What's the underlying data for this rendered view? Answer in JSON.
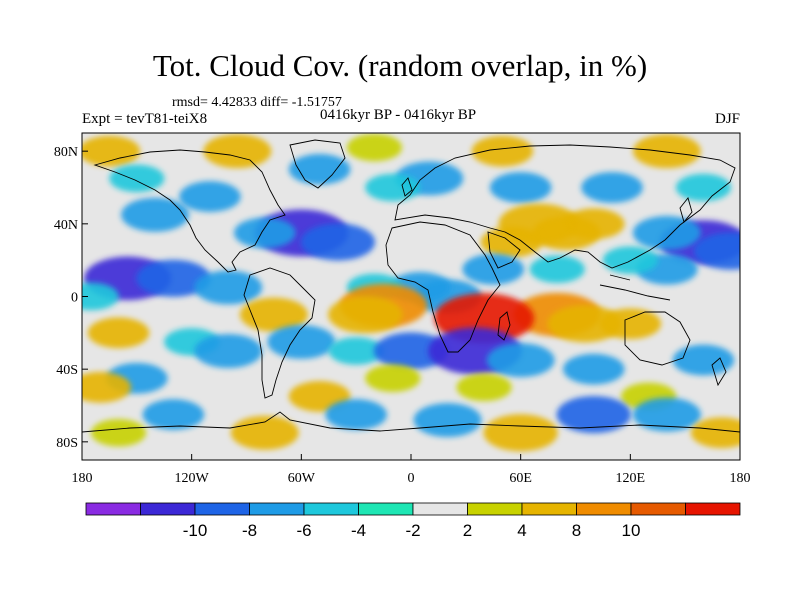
{
  "title": "Tot. Cloud Cov. (random overlap, in %)",
  "stats": "rmsd= 4.42833 diff= -1.51757",
  "experiment": "Expt = tevT81-teiX8",
  "period": "0416kyr BP - 0416kyr BP",
  "season": "DJF",
  "axes": {
    "x_ticks": [
      {
        "value": -180,
        "label": "180"
      },
      {
        "value": -120,
        "label": "120W"
      },
      {
        "value": -60,
        "label": "60W"
      },
      {
        "value": 0,
        "label": "0"
      },
      {
        "value": 60,
        "label": "60E"
      },
      {
        "value": 120,
        "label": "120E"
      },
      {
        "value": 180,
        "label": "180"
      }
    ],
    "y_ticks": [
      {
        "value": 80,
        "label": "80N"
      },
      {
        "value": 40,
        "label": "40N"
      },
      {
        "value": 0,
        "label": "0"
      },
      {
        "value": -40,
        "label": "40S"
      },
      {
        "value": -80,
        "label": "80S"
      }
    ],
    "lon_range": [
      -180,
      180
    ],
    "lat_range": [
      -90,
      90
    ]
  },
  "colorbar": {
    "colors": [
      "#8a2be2",
      "#3c28d6",
      "#1e64e6",
      "#1e9be6",
      "#1ec8dc",
      "#1ee6b4",
      "#e6e6e6",
      "#c8d200",
      "#e6b400",
      "#f08c00",
      "#e65a00",
      "#e61400"
    ],
    "labels": [
      {
        "index": 1,
        "text": "-10"
      },
      {
        "index": 2,
        "text": "-8"
      },
      {
        "index": 3,
        "text": "-6"
      },
      {
        "index": 4,
        "text": "-4"
      },
      {
        "index": 5,
        "text": "-2"
      },
      {
        "index": 6,
        "text": "2"
      },
      {
        "index": 7,
        "text": "4"
      },
      {
        "index": 8,
        "text": "8"
      },
      {
        "index": 9,
        "text": "10"
      }
    ]
  },
  "field_patches": [
    {
      "lon": -165,
      "lat": 80,
      "value": 4
    },
    {
      "lon": -95,
      "lat": 80,
      "value": 5
    },
    {
      "lon": -20,
      "lat": 82,
      "value": 3
    },
    {
      "lon": 50,
      "lat": 80,
      "value": 4
    },
    {
      "lon": 140,
      "lat": 80,
      "value": 5
    },
    {
      "lon": -150,
      "lat": 65,
      "value": -3
    },
    {
      "lon": -140,
      "lat": 45,
      "value": -5
    },
    {
      "lon": -110,
      "lat": 55,
      "value": -4
    },
    {
      "lon": -50,
      "lat": 70,
      "value": -4
    },
    {
      "lon": 10,
      "lat": 65,
      "value": -5
    },
    {
      "lon": -10,
      "lat": 60,
      "value": -3
    },
    {
      "lon": 60,
      "lat": 60,
      "value": -4
    },
    {
      "lon": 110,
      "lat": 60,
      "value": -4
    },
    {
      "lon": 160,
      "lat": 60,
      "value": -3
    },
    {
      "lon": -60,
      "lat": 35,
      "value": -9
    },
    {
      "lon": -40,
      "lat": 30,
      "value": -6
    },
    {
      "lon": -80,
      "lat": 35,
      "value": -4
    },
    {
      "lon": 160,
      "lat": 30,
      "value": -8
    },
    {
      "lon": 140,
      "lat": 35,
      "value": -5
    },
    {
      "lon": 175,
      "lat": 25,
      "value": -6
    },
    {
      "lon": 70,
      "lat": 40,
      "value": 7
    },
    {
      "lon": 85,
      "lat": 35,
      "value": 5
    },
    {
      "lon": 55,
      "lat": 30,
      "value": 4
    },
    {
      "lon": 100,
      "lat": 40,
      "value": 4
    },
    {
      "lon": 45,
      "lat": 15,
      "value": -4
    },
    {
      "lon": 80,
      "lat": 15,
      "value": -3
    },
    {
      "lon": -155,
      "lat": 10,
      "value": -8
    },
    {
      "lon": -130,
      "lat": 10,
      "value": -6
    },
    {
      "lon": -100,
      "lat": 5,
      "value": -5
    },
    {
      "lon": -175,
      "lat": 0,
      "value": -3
    },
    {
      "lon": 20,
      "lat": 0,
      "value": -5
    },
    {
      "lon": 5,
      "lat": 5,
      "value": -4
    },
    {
      "lon": -20,
      "lat": 5,
      "value": -3
    },
    {
      "lon": 140,
      "lat": 15,
      "value": -4
    },
    {
      "lon": 120,
      "lat": 20,
      "value": -3
    },
    {
      "lon": -15,
      "lat": -5,
      "value": 8
    },
    {
      "lon": -25,
      "lat": -10,
      "value": 6
    },
    {
      "lon": 80,
      "lat": -10,
      "value": 8
    },
    {
      "lon": 95,
      "lat": -15,
      "value": 6
    },
    {
      "lon": 120,
      "lat": -15,
      "value": 4
    },
    {
      "lon": -75,
      "lat": -10,
      "value": 5
    },
    {
      "lon": 40,
      "lat": -12,
      "value": 10
    },
    {
      "lon": -160,
      "lat": -20,
      "value": 4
    },
    {
      "lon": -120,
      "lat": -25,
      "value": -3
    },
    {
      "lon": -100,
      "lat": -30,
      "value": -5
    },
    {
      "lon": -60,
      "lat": -25,
      "value": -5
    },
    {
      "lon": -30,
      "lat": -30,
      "value": -3
    },
    {
      "lon": 0,
      "lat": -30,
      "value": -6
    },
    {
      "lon": 35,
      "lat": -30,
      "value": -9
    },
    {
      "lon": 60,
      "lat": -35,
      "value": -5
    },
    {
      "lon": 100,
      "lat": -40,
      "value": -4
    },
    {
      "lon": 160,
      "lat": -35,
      "value": -4
    },
    {
      "lon": -150,
      "lat": -45,
      "value": -4
    },
    {
      "lon": -170,
      "lat": -50,
      "value": 4
    },
    {
      "lon": -50,
      "lat": -55,
      "value": 4
    },
    {
      "lon": -10,
      "lat": -45,
      "value": 3
    },
    {
      "lon": 40,
      "lat": -50,
      "value": 3
    },
    {
      "lon": 130,
      "lat": -55,
      "value": 3
    },
    {
      "lon": 100,
      "lat": -65,
      "value": -6
    },
    {
      "lon": 140,
      "lat": -65,
      "value": -5
    },
    {
      "lon": -130,
      "lat": -65,
      "value": -4
    },
    {
      "lon": -30,
      "lat": -65,
      "value": -4
    },
    {
      "lon": 20,
      "lat": -68,
      "value": -5
    },
    {
      "lon": 60,
      "lat": -75,
      "value": 6
    },
    {
      "lon": -80,
      "lat": -75,
      "value": 5
    },
    {
      "lon": 170,
      "lat": -75,
      "value": 4
    },
    {
      "lon": -160,
      "lat": -75,
      "value": 3
    }
  ]
}
